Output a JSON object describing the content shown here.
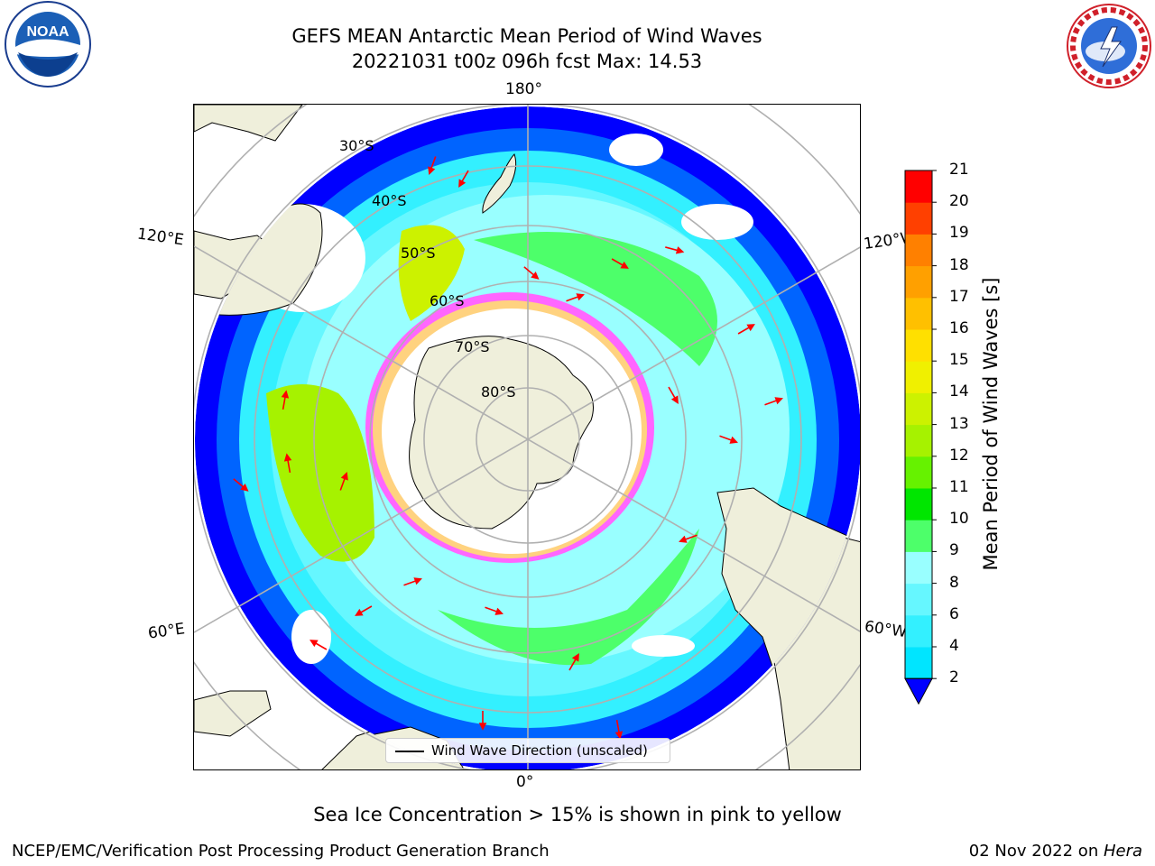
{
  "header": {
    "title_line1": "GEFS MEAN Antarctic Mean Period of Wind Waves",
    "title_line2": "20221031 t00z 096h fcst   Max: 14.53"
  },
  "logos": {
    "left_text": "NOAA",
    "right_text": "NATIONAL WEATHER SERVICE"
  },
  "map": {
    "meridian_labels": [
      {
        "text": "180°"
      },
      {
        "text": "120°E"
      },
      {
        "text": "120°W"
      },
      {
        "text": "60°E"
      },
      {
        "text": "60°W"
      },
      {
        "text": "0°"
      }
    ],
    "parallel_labels": [
      "30°S",
      "40°S",
      "50°S",
      "60°S",
      "70°S",
      "80°S"
    ],
    "legend_label": "Wind Wave Direction (unscaled)"
  },
  "colorbar": {
    "label": "Mean Period of Wind Waves [s]",
    "ticks": [
      "2",
      "4",
      "6",
      "8",
      "9",
      "10",
      "11",
      "12",
      "13",
      "14",
      "15",
      "16",
      "17",
      "18",
      "19",
      "20",
      "21"
    ],
    "colors": [
      "#0064ff",
      "#00e5ff",
      "#33f0ff",
      "#66f7ff",
      "#99ffff",
      "#4dff6a",
      "#00e600",
      "#66f200",
      "#a6f200",
      "#ccf200",
      "#f0f000",
      "#ffe000",
      "#ffc000",
      "#ffa000",
      "#ff8000",
      "#ff4000",
      "#ff0000"
    ],
    "under_color": "#0000ff"
  },
  "subtitle": "Sea Ice Concentration > 15% is shown in pink to yellow",
  "footer": {
    "left": "NCEP/EMC/Verification Post Processing Product Generation Branch",
    "right_date": "02 Nov 2022 on ",
    "right_host": "Hera"
  }
}
